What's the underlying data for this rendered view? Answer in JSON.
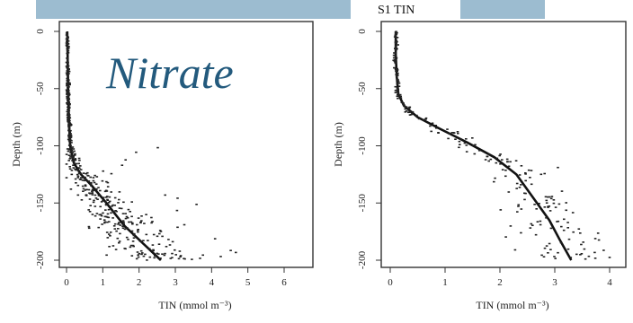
{
  "header": {
    "bar_color": "#9cbcd0"
  },
  "panel_left": {
    "title": "Nitrate",
    "title_color": "#235a7d"
  },
  "panel_right": {
    "title": "S1 TIN"
  },
  "chart_data": [
    {
      "type": "scatter",
      "title": "Nitrate",
      "xlabel": "TIN  (mmol m⁻³)",
      "ylabel": "Depth (m)",
      "xlim": [
        0,
        6
      ],
      "ylim": [
        -205,
        0
      ],
      "xticks": [
        0,
        1,
        2,
        3,
        4,
        5,
        6
      ],
      "yticks": [
        0,
        -50,
        -100,
        -150,
        -200
      ],
      "series": [
        {
          "kind": "line",
          "points": [
            [
              0.02,
              0
            ],
            [
              0.03,
              -20
            ],
            [
              0.04,
              -40
            ],
            [
              0.05,
              -60
            ],
            [
              0.07,
              -80
            ],
            [
              0.1,
              -100
            ],
            [
              0.2,
              -115
            ],
            [
              0.4,
              -125
            ],
            [
              0.7,
              -135
            ],
            [
              1.1,
              -150
            ],
            [
              1.6,
              -170
            ],
            [
              2.1,
              -185
            ],
            [
              2.6,
              -200
            ]
          ]
        }
      ]
    },
    {
      "type": "scatter",
      "title": "S1 TIN",
      "xlabel": "TIN  (mmol m⁻³)",
      "ylabel": "Depth (m)",
      "xlim": [
        0,
        4.3
      ],
      "ylim": [
        -205,
        0
      ],
      "xticks": [
        0,
        1,
        2,
        3,
        4
      ],
      "yticks": [
        0,
        -50,
        -100,
        -150,
        -200
      ],
      "series": [
        {
          "kind": "line",
          "points": [
            [
              0.1,
              0
            ],
            [
              0.1,
              -20
            ],
            [
              0.12,
              -40
            ],
            [
              0.15,
              -55
            ],
            [
              0.25,
              -65
            ],
            [
              0.5,
              -75
            ],
            [
              0.9,
              -85
            ],
            [
              1.4,
              -97
            ],
            [
              1.9,
              -110
            ],
            [
              2.3,
              -125
            ],
            [
              2.6,
              -145
            ],
            [
              2.9,
              -165
            ],
            [
              3.1,
              -183
            ],
            [
              3.3,
              -200
            ]
          ]
        }
      ]
    }
  ]
}
